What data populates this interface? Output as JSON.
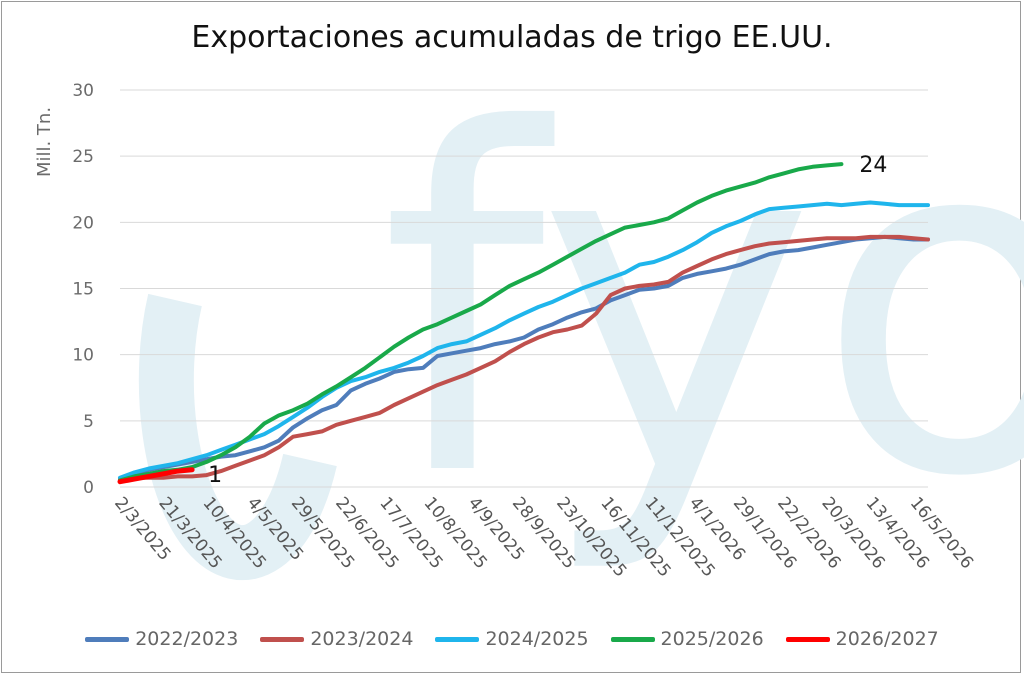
{
  "colors": {
    "2022/2023": "#4f7dbb",
    "2023/2024": "#c0504d",
    "2024/2025": "#1fb5ec",
    "2025/2026": "#19a94a",
    "2026/2027": "#ff0000",
    "watermark": "#e3f0f5",
    "grid": "#d9d9d9"
  },
  "watermark_text": "fyo",
  "chart_data": {
    "type": "line",
    "title": "Exportaciones acumuladas de trigo EE.UU.",
    "xlabel": "",
    "ylabel": "Mill. Tn.",
    "ylim": [
      0,
      30
    ],
    "yticks": [
      "0",
      "5",
      "10",
      "15",
      "20",
      "25",
      "30"
    ],
    "xticks": [
      "2/3/2025",
      "21/3/2025",
      "10/4/2025",
      "4/5/2025",
      "29/5/2025",
      "22/6/2025",
      "17/7/2025",
      "10/8/2025",
      "4/9/2025",
      "28/9/2025",
      "23/10/2025",
      "16/11/2025",
      "11/12/2025",
      "4/1/2026",
      "29/1/2026",
      "22/2/2026",
      "20/3/2026",
      "13/4/2026",
      "16/5/2026"
    ],
    "x_min": 0,
    "x_max": 56,
    "legend_position": "bottom",
    "series": [
      {
        "name": "2022/2023",
        "x": [
          0,
          1,
          2,
          3,
          4,
          5,
          6,
          7,
          8,
          9,
          10,
          11,
          12,
          13,
          14,
          15,
          16,
          17,
          18,
          19,
          20,
          21,
          22,
          23,
          24,
          25,
          26,
          27,
          28,
          29,
          30,
          31,
          32,
          33,
          34,
          35,
          36,
          37,
          38,
          39,
          40,
          41,
          42,
          43,
          44,
          45,
          46,
          47,
          48,
          49,
          50,
          51,
          52,
          53,
          54,
          55,
          56
        ],
        "values": [
          0.6,
          1.0,
          1.3,
          1.5,
          1.7,
          1.9,
          2.1,
          2.3,
          2.4,
          2.7,
          3.0,
          3.5,
          4.5,
          5.2,
          5.8,
          6.2,
          7.3,
          7.8,
          8.2,
          8.7,
          8.9,
          9.0,
          9.9,
          10.1,
          10.3,
          10.5,
          10.8,
          11.0,
          11.3,
          11.9,
          12.3,
          12.8,
          13.2,
          13.5,
          14.1,
          14.5,
          14.9,
          15.0,
          15.2,
          15.8,
          16.1,
          16.3,
          16.5,
          16.8,
          17.2,
          17.6,
          17.8,
          17.9,
          18.1,
          18.3,
          18.5,
          18.7,
          18.8,
          18.9,
          18.8,
          18.7,
          18.7
        ]
      },
      {
        "name": "2023/2024",
        "x": [
          0,
          1,
          2,
          3,
          4,
          5,
          6,
          7,
          8,
          9,
          10,
          11,
          12,
          13,
          14,
          15,
          16,
          17,
          18,
          19,
          20,
          21,
          22,
          23,
          24,
          25,
          26,
          27,
          28,
          29,
          30,
          31,
          32,
          33,
          34,
          35,
          36,
          37,
          38,
          39,
          40,
          41,
          42,
          43,
          44,
          45,
          46,
          47,
          48,
          49,
          50,
          51,
          52,
          53,
          54,
          55,
          56
        ],
        "values": [
          0.6,
          0.7,
          0.7,
          0.7,
          0.8,
          0.8,
          0.9,
          1.2,
          1.6,
          2.0,
          2.4,
          3.0,
          3.8,
          4.0,
          4.2,
          4.7,
          5.0,
          5.3,
          5.6,
          6.2,
          6.7,
          7.2,
          7.7,
          8.1,
          8.5,
          9.0,
          9.5,
          10.2,
          10.8,
          11.3,
          11.7,
          11.9,
          12.2,
          13.1,
          14.5,
          15.0,
          15.2,
          15.3,
          15.5,
          16.2,
          16.7,
          17.2,
          17.6,
          17.9,
          18.2,
          18.4,
          18.5,
          18.6,
          18.7,
          18.8,
          18.8,
          18.8,
          18.9,
          18.9,
          18.9,
          18.8,
          18.7
        ]
      },
      {
        "name": "2024/2025",
        "x": [
          0,
          1,
          2,
          3,
          4,
          5,
          6,
          7,
          8,
          9,
          10,
          11,
          12,
          13,
          14,
          15,
          16,
          17,
          18,
          19,
          20,
          21,
          22,
          23,
          24,
          25,
          26,
          27,
          28,
          29,
          30,
          31,
          32,
          33,
          34,
          35,
          36,
          37,
          38,
          39,
          40,
          41,
          42,
          43,
          44,
          45,
          46,
          47,
          48,
          49,
          50,
          51,
          52,
          53,
          54,
          55,
          56
        ],
        "values": [
          0.7,
          1.1,
          1.4,
          1.6,
          1.8,
          2.1,
          2.4,
          2.8,
          3.2,
          3.6,
          4.0,
          4.6,
          5.3,
          6.0,
          6.8,
          7.5,
          8.0,
          8.3,
          8.7,
          9.0,
          9.4,
          9.9,
          10.5,
          10.8,
          11.0,
          11.5,
          12.0,
          12.6,
          13.1,
          13.6,
          14.0,
          14.5,
          15.0,
          15.4,
          15.8,
          16.2,
          16.8,
          17.0,
          17.4,
          17.9,
          18.5,
          19.2,
          19.7,
          20.1,
          20.6,
          21.0,
          21.1,
          21.2,
          21.3,
          21.4,
          21.3,
          21.4,
          21.5,
          21.4,
          21.3,
          21.3,
          21.3
        ]
      },
      {
        "name": "2025/2026",
        "x": [
          0,
          1,
          2,
          3,
          4,
          5,
          6,
          7,
          8,
          9,
          10,
          11,
          12,
          13,
          14,
          15,
          16,
          17,
          18,
          19,
          20,
          21,
          22,
          23,
          24,
          25,
          26,
          27,
          28,
          29,
          30,
          31,
          32,
          33,
          34,
          35,
          36,
          37,
          38,
          39,
          40,
          41,
          42,
          43,
          44,
          45,
          46,
          47,
          48,
          49,
          50
        ],
        "values": [
          0.5,
          0.8,
          1.0,
          1.2,
          1.3,
          1.5,
          1.9,
          2.4,
          3.0,
          3.8,
          4.8,
          5.4,
          5.8,
          6.3,
          7.0,
          7.6,
          8.3,
          9.0,
          9.8,
          10.6,
          11.3,
          11.9,
          12.3,
          12.8,
          13.3,
          13.8,
          14.5,
          15.2,
          15.7,
          16.2,
          16.8,
          17.4,
          18.0,
          18.6,
          19.1,
          19.6,
          19.8,
          20.0,
          20.3,
          20.9,
          21.5,
          22.0,
          22.4,
          22.7,
          23.0,
          23.4,
          23.7,
          24.0,
          24.2,
          24.3,
          24.4
        ]
      },
      {
        "name": "2026/2027",
        "x": [
          0,
          1,
          2,
          3,
          4,
          5
        ],
        "values": [
          0.4,
          0.6,
          0.8,
          1.0,
          1.2,
          1.3
        ]
      }
    ],
    "end_labels": [
      {
        "series": "2025/2026",
        "text": "24"
      },
      {
        "series": "2026/2027",
        "text": "1"
      }
    ]
  }
}
